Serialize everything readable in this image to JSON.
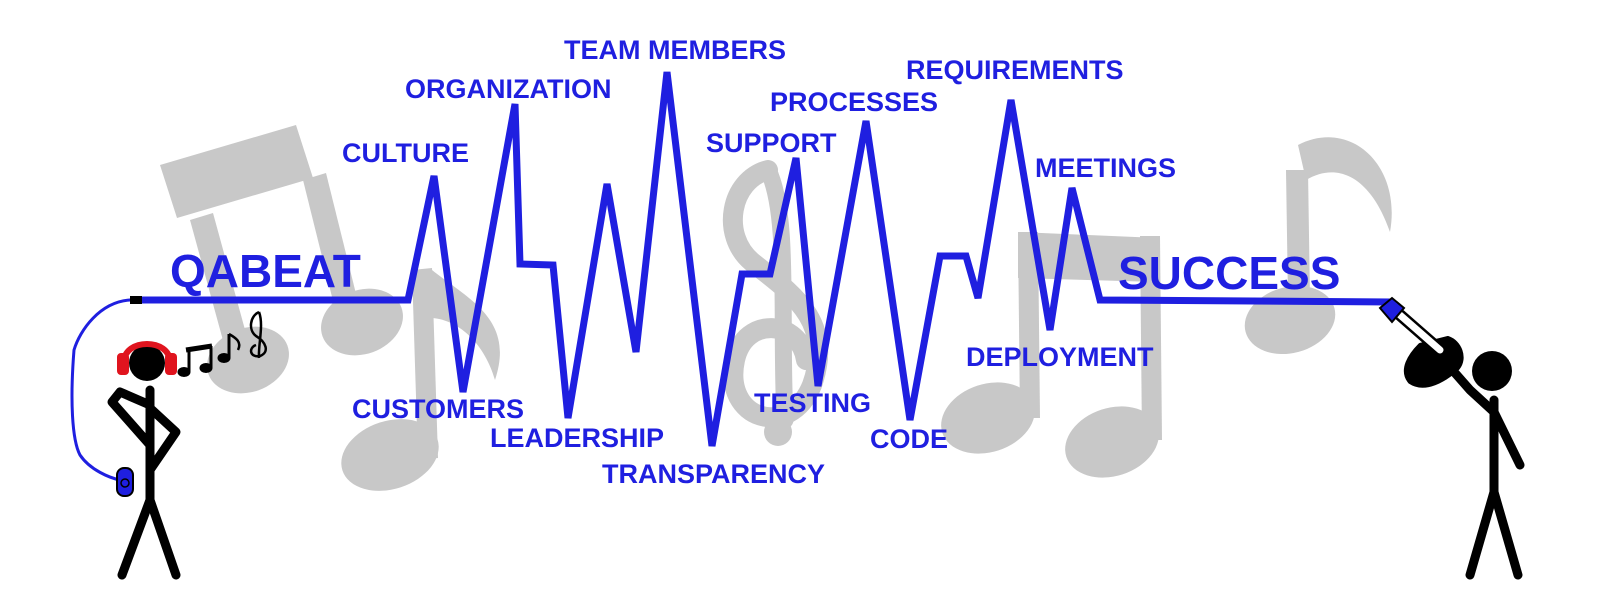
{
  "diagram": {
    "start_label": "QABEAT",
    "end_label": "SUCCESS",
    "beat_labels": {
      "culture": "CULTURE",
      "organization": "ORGANIZATION",
      "team_members": "TEAM MEMBERS",
      "support": "SUPPORT",
      "processes": "PROCESSES",
      "requirements": "REQUIREMENTS",
      "meetings": "MEETINGS",
      "customers": "CUSTOMERS",
      "leadership": "LEADERSHIP",
      "transparency": "TRANSPARENCY",
      "testing": "TESTING",
      "code": "CODE",
      "deployment": "DEPLOYMENT"
    },
    "line_color": "#1f1fe0",
    "background_note_color": "#c8c8c8",
    "headphones_color": "#e0141e",
    "figures": [
      "stick-figure-listener",
      "stick-figure-with-microphone"
    ],
    "icons": [
      "music-note-icon",
      "beamed-notes-icon",
      "treble-clef-icon",
      "headphones-icon",
      "music-player-icon",
      "microphone-icon"
    ]
  }
}
